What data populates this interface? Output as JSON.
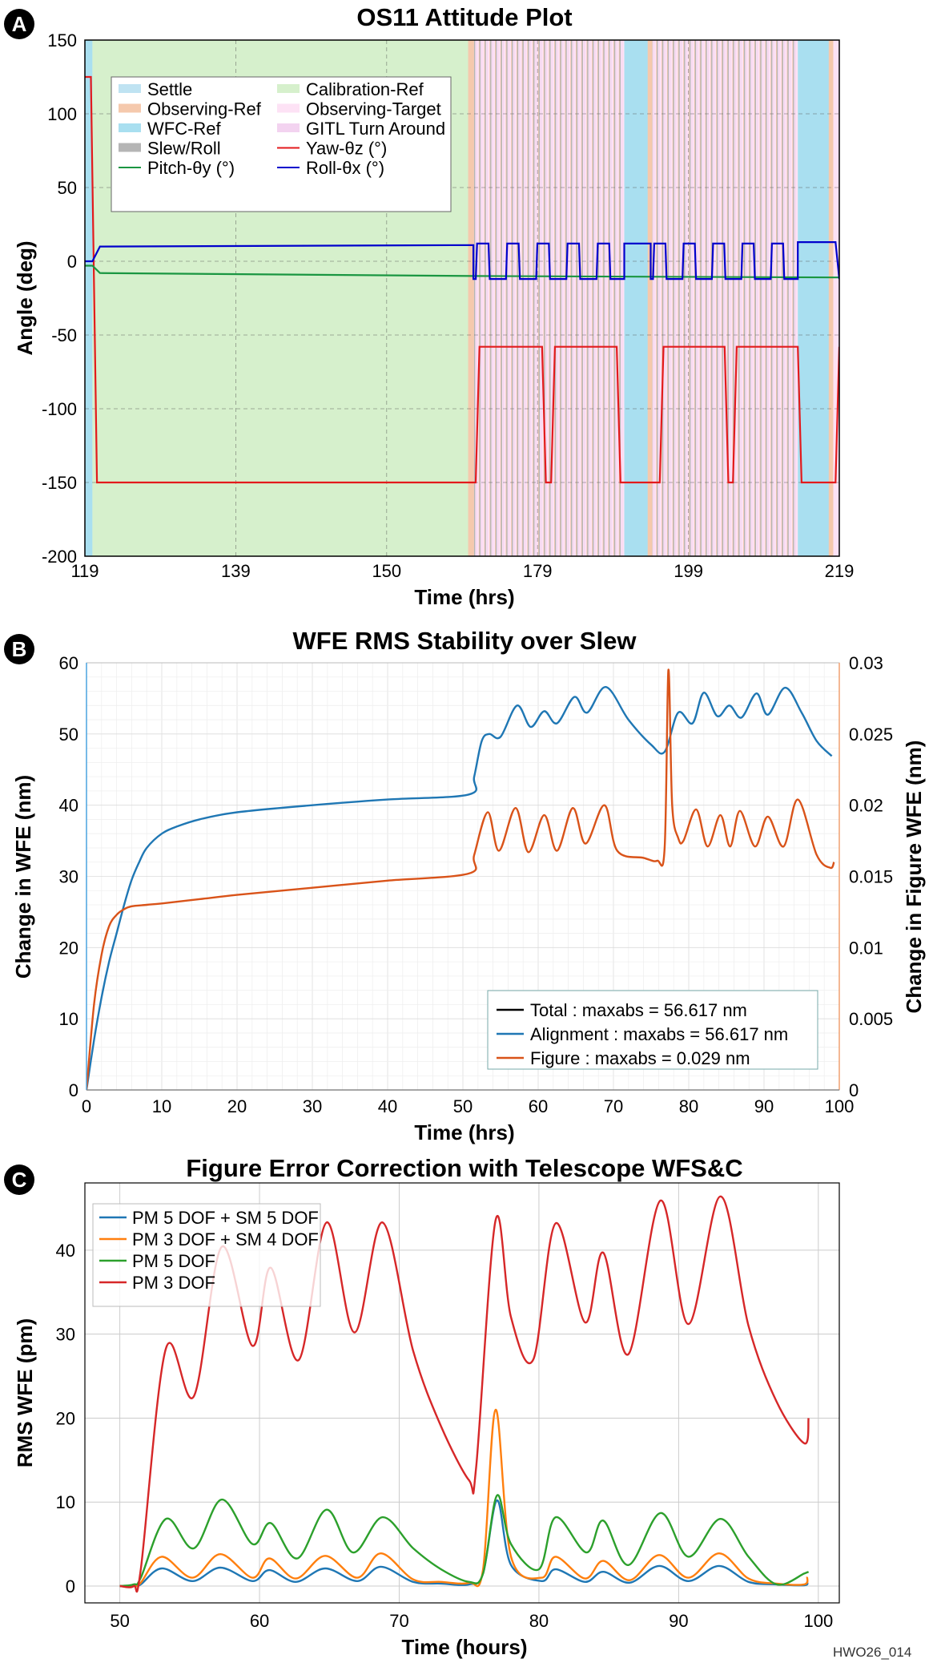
{
  "footnote": "HWO26_014",
  "chart_data": [
    {
      "panel": "A",
      "type": "line",
      "title": "OS11 Attitude Plot",
      "xlabel": "Time (hrs)",
      "ylabel": "Angle (deg)",
      "xlim": [
        119,
        219
      ],
      "ylim": [
        -200,
        150
      ],
      "xticks": [
        "119",
        "139",
        "150",
        "179",
        "199",
        "219"
      ],
      "yticks": [
        150,
        100,
        50,
        0,
        -50,
        -100,
        -150,
        -200
      ],
      "grid": true,
      "legend_position": "top-left",
      "bands": [
        {
          "name": "Settle",
          "color": "#bfe3f2"
        },
        {
          "name": "Calibration-Ref",
          "color": "#d6f0cc"
        },
        {
          "name": "Observing-Ref",
          "color": "#f5c9ad"
        },
        {
          "name": "Observing-Target",
          "color": "#fde2f5"
        },
        {
          "name": "WFC-Ref",
          "color": "#a9dff0"
        },
        {
          "name": "GITL Turn Around",
          "color": "#f3d3f0"
        },
        {
          "name": "Slew/Roll",
          "color": "#b5b5b5"
        }
      ],
      "band_segments": [
        {
          "band": "WFC-Ref",
          "start": 119,
          "end": 120
        },
        {
          "band": "Calibration-Ref",
          "start": 120,
          "end": 170.5
        },
        {
          "band": "Observing-Target",
          "start": 170.5,
          "end": 190.5
        },
        {
          "band": "WFC-Ref",
          "start": 190.5,
          "end": 194
        },
        {
          "band": "Observing-Target",
          "start": 194,
          "end": 213.5
        },
        {
          "band": "WFC-Ref",
          "start": 213.5,
          "end": 218
        },
        {
          "band": "Observing-Target",
          "start": 218,
          "end": 219
        }
      ],
      "series": [
        {
          "name": "Yaw-θz (°)",
          "color": "#e31a1c",
          "x": [
            119,
            119.8,
            120.6,
            170.8,
            171.3,
            179.6,
            180.1,
            180.8,
            181.3,
            189.5,
            190,
            195.2,
            195.7,
            203.8,
            204.3,
            204.9,
            205.4,
            213.5,
            214,
            218.5,
            219
          ],
          "y": [
            125,
            125,
            -150,
            -150,
            -58,
            -58,
            -150,
            -150,
            -58,
            -58,
            -150,
            -150,
            -58,
            -58,
            -150,
            -150,
            -58,
            -58,
            -150,
            -150,
            -58
          ]
        },
        {
          "name": "Pitch-θy (°)",
          "color": "#1a9641",
          "x": [
            119,
            120,
            121,
            170.5,
            219
          ],
          "y": [
            -3,
            -3,
            -8,
            -10,
            -11
          ]
        },
        {
          "name": "Roll-θx (°)",
          "color": "#0000cc",
          "x": [
            119,
            120,
            121,
            170.5,
            171,
            219
          ],
          "y": [
            0,
            0,
            10,
            11,
            -12,
            13
          ]
        }
      ],
      "legend": [
        "Settle",
        "Calibration-Ref",
        "Observing-Ref",
        "Observing-Target",
        "WFC-Ref",
        "GITL Turn Around",
        "Slew/Roll",
        "Yaw-θz (°)",
        "Pitch-θy (°)",
        "Roll-θx (°)"
      ]
    },
    {
      "panel": "B",
      "type": "line",
      "title": "WFE RMS Stability over Slew",
      "xlabel": "Time (hrs)",
      "ylabel": "Change in WFE (nm)",
      "y2label": "Change in Figure WFE (nm)",
      "xlim": [
        0,
        100
      ],
      "ylim": [
        0,
        60
      ],
      "y2lim": [
        0,
        0.03
      ],
      "xticks": [
        0,
        10,
        20,
        30,
        40,
        50,
        60,
        70,
        80,
        90,
        100
      ],
      "yticks": [
        0,
        10,
        20,
        30,
        40,
        50,
        60
      ],
      "y2ticks": [
        "0",
        "0.005",
        "0.01",
        "0.015",
        "0.02",
        "0.025",
        "0.03"
      ],
      "grid": true,
      "legend_position": "lower-right",
      "legend": [
        {
          "label": "Total : maxabs = 56.617 nm",
          "color": "#000000"
        },
        {
          "label": "Alignment : maxabs = 56.617 nm",
          "color": "#1f77b4"
        },
        {
          "label": "Figure : maxabs = 0.029 nm",
          "color": "#d95319"
        }
      ],
      "series": [
        {
          "name": "Alignment",
          "axis": "left",
          "color": "#1f77b4",
          "x": [
            0,
            1,
            2,
            3,
            4,
            5,
            6,
            7,
            8,
            10,
            12,
            15,
            20,
            30,
            40,
            50.8,
            51.5,
            52.5,
            53.5,
            55,
            57.2,
            59,
            60.8,
            62.5,
            64.8,
            66.5,
            69,
            72,
            75,
            76.8,
            78.6,
            80.5,
            82,
            83.8,
            85.4,
            87,
            89,
            90.5,
            92.8,
            95,
            97,
            99
          ],
          "y": [
            0,
            7,
            13,
            18,
            22,
            26,
            29.5,
            32,
            34,
            36,
            37,
            38,
            39,
            40,
            40.8,
            41.5,
            44,
            49,
            50,
            49.6,
            54,
            51,
            53.2,
            51.5,
            55.2,
            53,
            56.6,
            52,
            48.5,
            47.5,
            53,
            51.5,
            55.8,
            52.5,
            54,
            52.3,
            55.7,
            52.7,
            56.5,
            53,
            49,
            46.9
          ]
        },
        {
          "name": "Figure",
          "axis": "right",
          "color": "#d95319",
          "x": [
            0,
            1,
            2,
            3,
            4,
            5,
            6,
            8,
            10,
            15,
            20,
            30,
            40,
            50.8,
            51.5,
            53.3,
            54.8,
            57,
            58.7,
            60.8,
            62.5,
            64.6,
            66.3,
            68.8,
            70.5,
            74,
            75.8,
            76.8,
            77.3,
            77.8,
            78.6,
            79.3,
            81,
            82.5,
            84.2,
            85.5,
            86.8,
            88.8,
            90.5,
            92.6,
            94.5,
            97,
            98.8,
            99.3
          ],
          "y": [
            0,
            0.006,
            0.0095,
            0.0115,
            0.0123,
            0.0127,
            0.0129,
            0.013,
            0.0131,
            0.0134,
            0.0137,
            0.0142,
            0.0147,
            0.0152,
            0.0165,
            0.0195,
            0.0168,
            0.0198,
            0.0167,
            0.0193,
            0.0168,
            0.0198,
            0.0173,
            0.02,
            0.0168,
            0.0163,
            0.0161,
            0.017,
            0.0295,
            0.02,
            0.0177,
            0.0175,
            0.0197,
            0.0171,
            0.0193,
            0.0171,
            0.0196,
            0.0171,
            0.0192,
            0.0171,
            0.0204,
            0.0165,
            0.0156,
            0.016
          ]
        }
      ]
    },
    {
      "panel": "C",
      "type": "line",
      "title": "Figure Error Correction with Telescope WFS&C",
      "xlabel": "Time (hours)",
      "ylabel": "RMS WFE (pm)",
      "xlim": [
        47.5,
        101.5
      ],
      "ylim": [
        -2,
        48
      ],
      "xticks": [
        50,
        60,
        70,
        80,
        90,
        100
      ],
      "yticks": [
        0,
        10,
        20,
        30,
        40
      ],
      "grid": true,
      "legend_position": "top-left",
      "series": [
        {
          "name": "PM 5 DOF + SM 5 DOF",
          "color": "#1f77b4",
          "x": [
            50,
            51,
            51.5,
            53,
            55.2,
            57.2,
            59.5,
            60.7,
            62.6,
            64.7,
            67,
            68.7,
            71,
            73,
            75,
            76,
            77,
            78,
            80.2,
            81.2,
            83.3,
            84.6,
            86.5,
            88.6,
            90.7,
            92.9,
            95,
            97,
            99,
            99.2
          ],
          "y": [
            0,
            0,
            0.2,
            2.1,
            0.6,
            2.2,
            0.6,
            1.9,
            0.5,
            2.1,
            0.6,
            2.3,
            0.5,
            0.3,
            0.2,
            1.5,
            10.2,
            2.5,
            0.6,
            2,
            0.5,
            1.7,
            0.4,
            2.4,
            0.6,
            2.4,
            0.5,
            0.2,
            0.1,
            0.5
          ]
        },
        {
          "name": "PM 3 DOF + SM 4 DOF",
          "color": "#ff7f0e",
          "x": [
            50,
            51,
            51.5,
            53,
            55.2,
            57.2,
            59.5,
            60.7,
            62.6,
            64.7,
            67,
            68.7,
            71,
            73,
            75,
            76,
            76.9,
            78,
            80.2,
            81.2,
            83.3,
            84.6,
            86.5,
            88.6,
            90.7,
            92.9,
            95,
            97,
            99,
            99.2
          ],
          "y": [
            0,
            0,
            0.4,
            3.5,
            1,
            3.8,
            1,
            3.3,
            0.9,
            3.6,
            1,
            3.9,
            0.8,
            0.5,
            0.4,
            2,
            21,
            3.5,
            1,
            3.5,
            0.9,
            3,
            0.7,
            3.7,
            1,
            3.9,
            0.9,
            0.3,
            0.2,
            1.1
          ]
        },
        {
          "name": "PM 5 DOF",
          "color": "#2ca02c",
          "x": [
            50,
            51,
            51.5,
            53.3,
            55.3,
            57.3,
            59.5,
            60.8,
            62.7,
            64.8,
            66.7,
            68.8,
            71,
            73,
            75,
            76,
            77,
            78,
            80,
            81.2,
            83.4,
            84.6,
            86.4,
            88.7,
            90.7,
            93,
            95,
            97,
            99,
            99.3
          ],
          "y": [
            0,
            0.2,
            1,
            8,
            4.5,
            10.3,
            5,
            7.5,
            3.3,
            9.1,
            4,
            8.2,
            4.5,
            2,
            0.5,
            1.5,
            10.8,
            5,
            2,
            8.2,
            4,
            7.8,
            2.5,
            8.7,
            3.5,
            8,
            3.5,
            0.2,
            1.5,
            1.7
          ]
        },
        {
          "name": "PM 3 DOF",
          "color": "#d62728",
          "x": [
            50,
            51,
            51.5,
            53.3,
            55.3,
            57.3,
            59.5,
            60.8,
            62.8,
            64.8,
            66.8,
            68.8,
            71,
            73,
            75,
            75.5,
            76.9,
            78,
            79.6,
            81.2,
            83.3,
            84.6,
            86.4,
            88.7,
            90.7,
            93,
            95,
            97,
            99,
            99.3
          ],
          "y": [
            0,
            0,
            2,
            28.3,
            22.6,
            40.4,
            28.6,
            37.9,
            26.9,
            43.3,
            30.2,
            43.3,
            28,
            19,
            12.6,
            14,
            43.6,
            32,
            27,
            43.2,
            31.4,
            39.7,
            27.6,
            45.9,
            31.2,
            46.4,
            31,
            22,
            17,
            20
          ]
        }
      ]
    }
  ]
}
